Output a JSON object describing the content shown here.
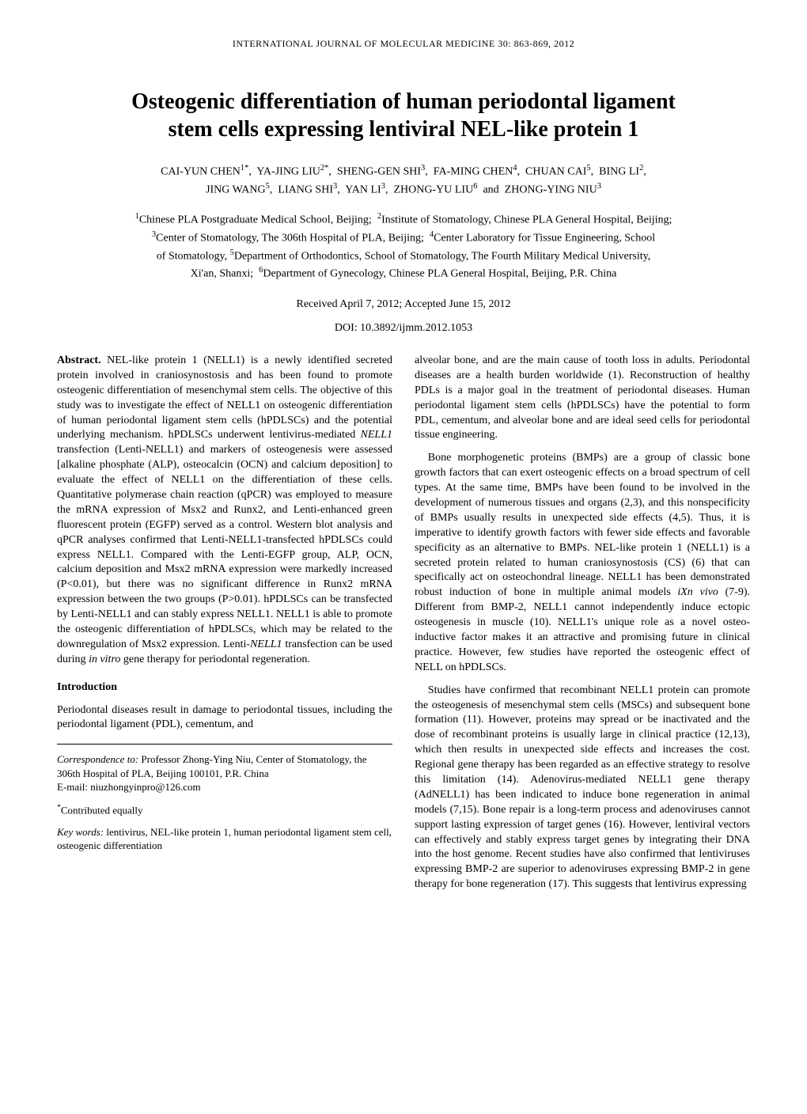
{
  "journal_header": "INTERNATIONAL JOURNAL OF MOLECULAR MEDICINE 30: 863-869, 2012",
  "title_line1": "Osteogenic differentiation of human periodontal ligament",
  "title_line2": "stem cells expressing lentiviral NEL-like protein 1",
  "authors_html": "CAI-YUN CHEN<sup>1*</sup>,&nbsp; YA-JING LIU<sup>2*</sup>,&nbsp; SHENG-GEN SHI<sup>3</sup>,&nbsp; FA-MING CHEN<sup>4</sup>,&nbsp; CHUAN CAI<sup>5</sup>,&nbsp; BING LI<sup>2</sup>,<br>JING WANG<sup>5</sup>,&nbsp; LIANG SHI<sup>3</sup>,&nbsp; YAN LI<sup>3</sup>,&nbsp; ZHONG-YU LIU<sup>6</sup>&nbsp; and&nbsp; ZHONG-YING NIU<sup>3</sup>",
  "affiliations_html": "<sup>1</sup>Chinese PLA Postgraduate Medical School, Beijing;&nbsp; <sup>2</sup>Institute of Stomatology, Chinese PLA General Hospital, Beijing;<br><sup>3</sup>Center of Stomatology, The 306th Hospital of PLA, Beijing;&nbsp; <sup>4</sup>Center Laboratory for Tissue Engineering, School<br>of Stomatology, <sup>5</sup>Department of Orthodontics, School of Stomatology, The Fourth Military Medical University,<br>Xi'an, Shanxi;&nbsp; <sup>6</sup>Department of Gynecology, Chinese PLA General Hospital, Beijing, P.R. China",
  "received": "Received April 7, 2012;  Accepted June 15, 2012",
  "doi": "DOI: 10.3892/ijmm.2012.1053",
  "abstract_label": "Abstract.",
  "abstract_text_html": " NEL-like protein 1 (NELL1) is a newly identified secreted protein involved in craniosynostosis and has been found to promote osteogenic differentiation of mesenchymal stem cells. The objective of this study was to investigate the effect of NELL1 on osteogenic differentiation of human periodontal ligament stem cells (hPDLSCs) and the potential underlying mechanism. hPDLSCs underwent lentivirus-mediated <span class=\"ital\">NELL1</span> transfection (Lenti-NELL1) and markers of osteogenesis were assessed [alkaline phosphate (ALP), osteocalcin (OCN) and calcium deposition] to evaluate the effect of NELL1 on the differentiation of these cells. Quantitative polymerase chain reaction (qPCR) was employed to measure the mRNA expression of Msx2 and Runx2, and Lenti-enhanced green fluorescent protein (EGFP) served as a control. Western blot analysis and qPCR analyses confirmed that Lenti-NELL1-transfected hPDLSCs could express NELL1. Compared with the Lenti-EGFP group, ALP, OCN, calcium deposition and Msx2 mRNA expression were markedly increased (P&lt;0.01), but there was no significant difference in Runx2 mRNA expression between the two groups (P&gt;0.01). hPDLSCs can be transfected by Lenti-NELL1 and can stably express NELL1. NELL1 is able to promote the osteogenic differentiation of hPDLSCs, which may be related to the downregulation of Msx2 expression. Lenti-<span class=\"ital\">NELL1</span> transfection can be used during <span class=\"ital\">in vitro</span> gene therapy for periodontal regeneration.",
  "intro_heading": "Introduction",
  "intro_p1": "Periodontal diseases result in damage to periodontal tissues, including the periodontal ligament (PDL), cementum, and",
  "correspondence_label": "Correspondence to:",
  "correspondence_text": " Professor Zhong-Ying Niu, Center of Stomatology, the 306th Hospital of PLA, Beijing 100101, P.R. China",
  "correspondence_email": "E-mail: niuzhongyinpro@126.com",
  "contributed_html": "<sup>*</sup>Contributed equally",
  "keywords_label": "Key words:",
  "keywords_text": " lentivirus, NEL-like protein 1, human periodontal ligament stem cell, osteogenic differentiation",
  "right_p1": "alveolar bone, and are the main cause of tooth loss in adults. Periodontal diseases are a health burden worldwide (1). Reconstruction of healthy PDLs is a major goal in the treatment of periodontal diseases. Human periodontal ligament stem cells (hPDLSCs) have the potential to form PDL, cementum, and alveolar bone and are ideal seed cells for periodontal tissue engineering.",
  "right_p2_html": "Bone morphogenetic proteins (BMPs) are a group of classic bone growth factors that can exert osteogenic effects on a broad spectrum of cell types. At the same time, BMPs have been found to be involved in the development of numerous tissues and organs (2,3), and this nonspecificity of BMPs usually results in unexpected side effects (4,5). Thus, it is imperative to identify growth factors with fewer side effects and favorable specificity as an alternative to BMPs. NEL-like protein 1 (NELL1) is a secreted protein related to human craniosynostosis (CS) (6) that can specifically act on osteochondral lineage. NELL1 has been demonstrated robust induction of bone in multiple animal models <span class=\"ital\">iXn vivo</span> (7-9). Different from BMP-2, NELL1 cannot independently induce ectopic osteogenesis in muscle (10). NELL1's unique role as a novel osteo-inductive factor makes it an attractive and promising future in clinical practice. However, few studies have reported the osteogenic effect of NELL on hPDLSCs.",
  "right_p3": "Studies have confirmed that recombinant NELL1 protein can promote the osteogenesis of mesenchymal stem cells (MSCs) and subsequent bone formation (11). However, proteins may spread or be inactivated and the dose of recombinant proteins is usually large in clinical practice (12,13), which then results in unexpected side effects and increases the cost. Regional gene therapy has been regarded as an effective strategy to resolve this limitation (14). Adenovirus-mediated NELL1 gene therapy (AdNELL1) has been indicated to induce bone regeneration in animal models (7,15). Bone repair is a long-term process and adenoviruses cannot support lasting expression of target genes (16). However, lentiviral vectors can effectively and stably express target genes by integrating their DNA into the host genome. Recent studies have also confirmed that lentiviruses expressing BMP-2 are superior to adenoviruses expressing BMP-2 in gene therapy for bone regeneration (17). This suggests that lentivirus expressing"
}
